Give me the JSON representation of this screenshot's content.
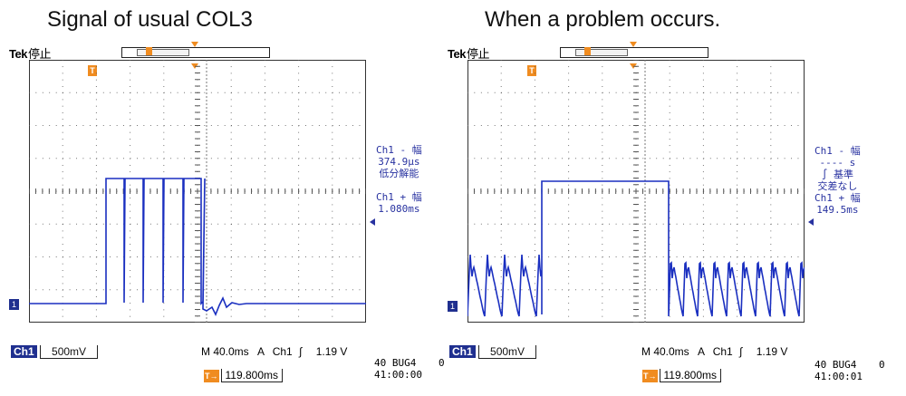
{
  "left_title": "Signal of usual COL3",
  "right_title": "When a problem occurs.",
  "scopes": [
    {
      "brand": "Tek",
      "state": "停止",
      "ground_marker": "1",
      "trigger_marker": "T",
      "side_readouts": [
        "Ch1 - 幅",
        "374.9μs",
        "低分解能",
        "",
        "Ch1 + 幅",
        "1.080ms"
      ],
      "channel_label": "Ch1",
      "volts_per_div": "500mV",
      "timebase": "M 40.0ms",
      "trigger_mode": "A",
      "trigger_source": "Ch1",
      "trigger_slope": "∫",
      "trigger_level": "1.19 V",
      "trigger_position": "119.800ms",
      "date": "40 BUG4",
      "time": "41:00:00",
      "counter": "0"
    },
    {
      "brand": "Tek",
      "state": "停止",
      "ground_marker": "1",
      "trigger_marker": "T",
      "side_readouts": [
        "Ch1 - 幅",
        "---- s",
        "∫ 基準",
        "交差なし",
        "Ch1 + 幅",
        "149.5ms"
      ],
      "channel_label": "Ch1",
      "volts_per_div": "500mV",
      "timebase": "M 40.0ms",
      "trigger_mode": "A",
      "trigger_source": "Ch1",
      "trigger_slope": "∫",
      "trigger_level": "1.19 V",
      "trigger_position": "119.800ms",
      "date": "40 BUG4",
      "time": "41:00:01",
      "counter": "0"
    }
  ],
  "colors": {
    "trace": "#1a2fc0",
    "accent": "#f08c20",
    "channel": "#1f2f8f",
    "grid": "#555555"
  }
}
